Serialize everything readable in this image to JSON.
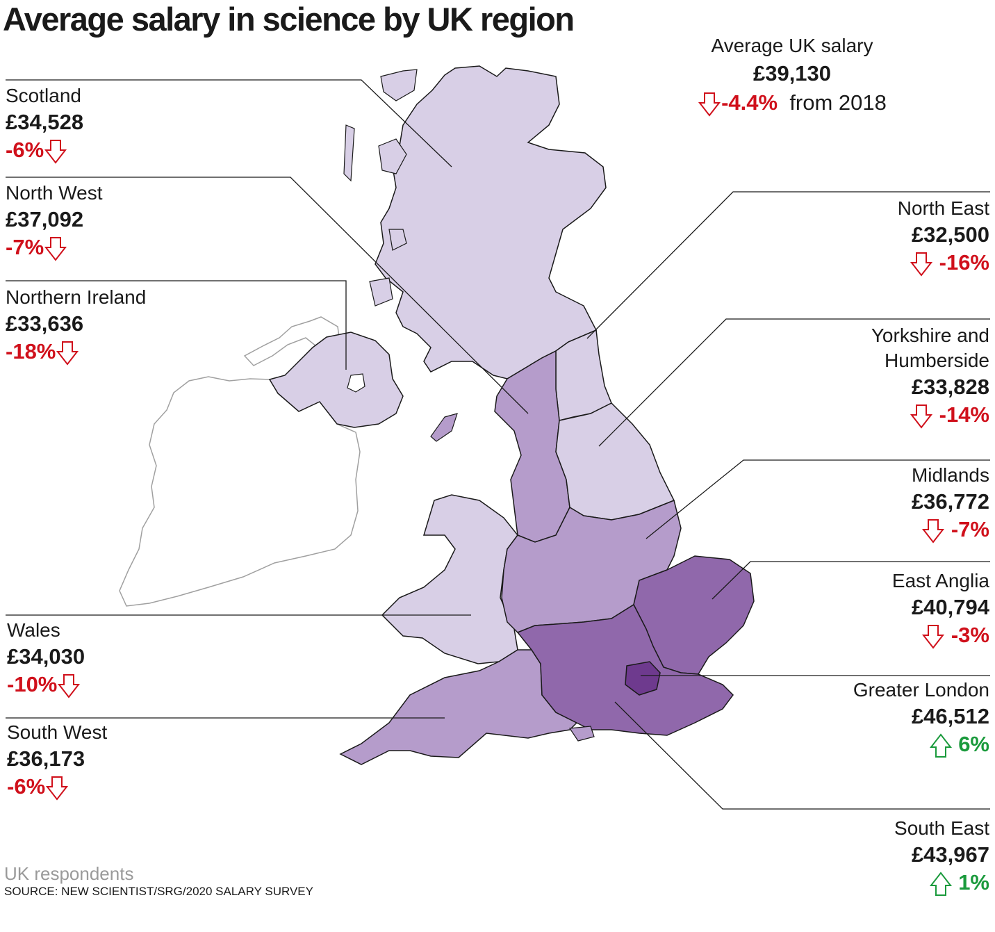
{
  "title": "Average salary in science by UK region",
  "average": {
    "label": "Average UK salary",
    "salary": "£39,130",
    "change": "-4.4%",
    "suffix": "from 2018",
    "direction": "down"
  },
  "regions": [
    {
      "key": "scotland",
      "name": "Scotland",
      "salary": "£34,528",
      "change": "-6%",
      "direction": "down"
    },
    {
      "key": "north_west",
      "name": "North West",
      "salary": "£37,092",
      "change": "-7%",
      "direction": "down"
    },
    {
      "key": "northern_ireland",
      "name": "Northern Ireland",
      "salary": "£33,636",
      "change": "-18%",
      "direction": "down"
    },
    {
      "key": "wales",
      "name": "Wales",
      "salary": "£34,030",
      "change": "-10%",
      "direction": "down"
    },
    {
      "key": "south_west",
      "name": "South West",
      "salary": "£36,173",
      "change": "-6%",
      "direction": "down"
    },
    {
      "key": "north_east",
      "name": "North East",
      "salary": "£32,500",
      "change": "-16%",
      "direction": "down"
    },
    {
      "key": "yorkshire",
      "name": "Yorkshire and Humberside",
      "name_line1": "Yorkshire and",
      "name_line2": "Humberside",
      "salary": "£33,828",
      "change": "-14%",
      "direction": "down"
    },
    {
      "key": "midlands",
      "name": "Midlands",
      "salary": "£36,772",
      "change": "-7%",
      "direction": "down"
    },
    {
      "key": "east_anglia",
      "name": "East Anglia",
      "salary": "£40,794",
      "change": "-3%",
      "direction": "down"
    },
    {
      "key": "greater_london",
      "name": "Greater London",
      "salary": "£46,512",
      "change": "6%",
      "direction": "up"
    },
    {
      "key": "south_east",
      "name": "South East",
      "salary": "£43,967",
      "change": "1%",
      "direction": "up"
    }
  ],
  "footer": {
    "note": "UK respondents",
    "source": "SOURCE: NEW SCIENTIST/SRG/2020 SALARY SURVEY"
  },
  "colors": {
    "tier1": "#d8cfe6",
    "tier2": "#b59ccb",
    "tier3": "#9068ab",
    "tier4": "#6e3a8e",
    "down": "#d0101b",
    "up": "#1a9a3c",
    "ireland_outline": "#a0a0a0"
  }
}
